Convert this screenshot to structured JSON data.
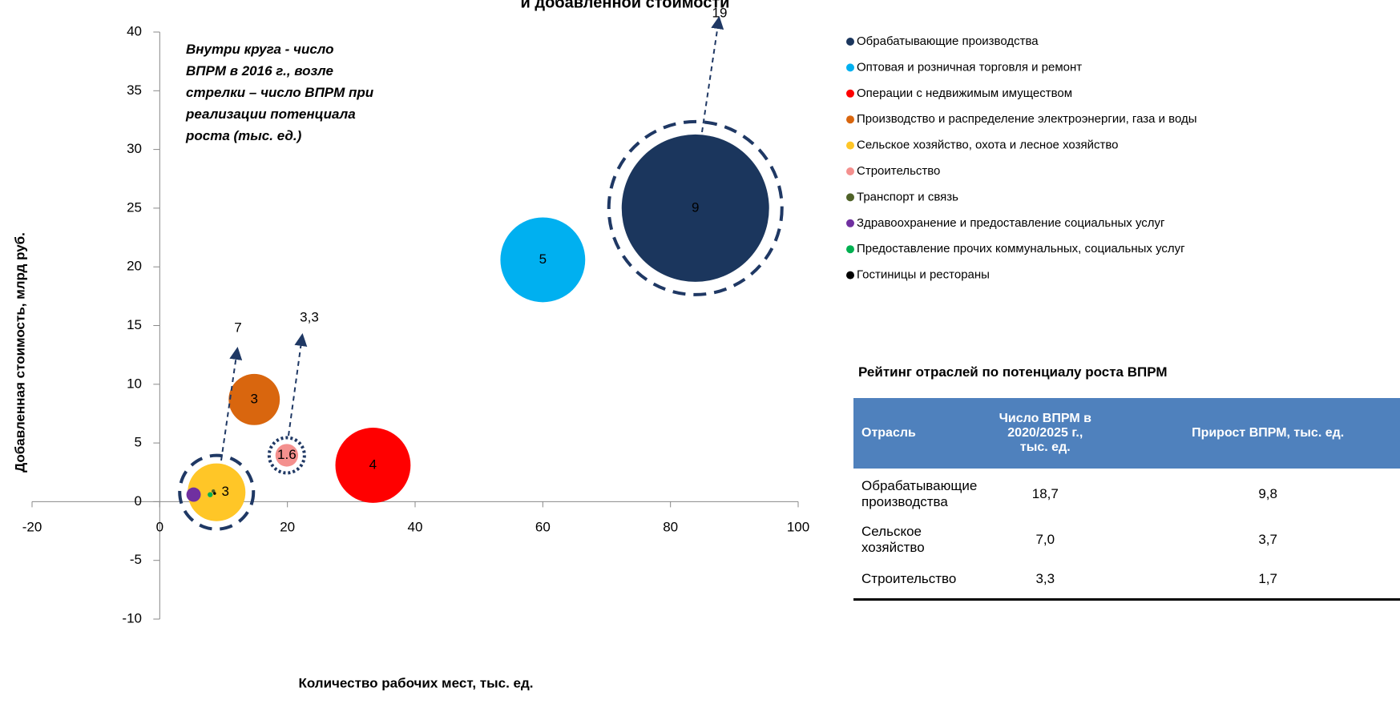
{
  "chart_data": {
    "type": "bubble",
    "title": "и добавленной стоимости",
    "x_label": "Количество рабочих мест, тыс. ед.",
    "y_label": "Добавленная стоимость, млрд руб.",
    "note": "Внутри круга - число ВПРМ в 2016 г., возле стрелки – число ВПРМ при реализации потенциала роста (тыс. ед.)",
    "xlim": [
      -20,
      100
    ],
    "xticks": [
      -20,
      0,
      20,
      40,
      60,
      80,
      100
    ],
    "ylim": [
      -10,
      40
    ],
    "yticks": [
      -10,
      -5,
      0,
      5,
      10,
      15,
      20,
      25,
      30,
      35,
      40
    ],
    "series": [
      {
        "name": "Обрабатывающие производства",
        "color": "#1b365d",
        "x": [
          83.9
        ],
        "values": [
          25.0
        ],
        "sizes": [
          84.6
        ],
        "value_labels": [
          "9"
        ],
        "potential_label": "19"
      },
      {
        "name": "Оптовая и розничная торговля и ремонт",
        "color": "#00b0f0",
        "x": [
          60
        ],
        "values": [
          20.6
        ],
        "sizes": [
          28
        ],
        "value_labels": [
          "5"
        ]
      },
      {
        "name": "Операции с недвижимым имуществом",
        "color": "#ff0000",
        "x": [
          33.4
        ],
        "values": [
          3.1
        ],
        "sizes": [
          22
        ],
        "value_labels": [
          "4"
        ]
      },
      {
        "name": "Производство и распределение электроэнергии, газа и воды",
        "color": "#d9660e",
        "x": [
          14.8
        ],
        "values": [
          8.7
        ],
        "sizes": [
          10.2
        ],
        "value_labels": [
          "3"
        ]
      },
      {
        "name": "Сельское хозяйство, охота и лесное хозяйство",
        "color": "#ffc627",
        "x": [
          8.9
        ],
        "values": [
          0.8
        ],
        "sizes": [
          13
        ],
        "value_labels": [
          "3"
        ],
        "potential_label": "7"
      },
      {
        "name": "Строительство",
        "color": "#f4908e",
        "x": [
          19.9
        ],
        "values": [
          3.95
        ],
        "sizes": [
          2
        ],
        "value_labels": [
          "1.6"
        ],
        "potential_label": "3,3"
      },
      {
        "name": "Транспорт и связь",
        "color": "#4f6228",
        "x": [
          8.4
        ],
        "values": [
          0.9
        ],
        "sizes": [
          0.05
        ]
      },
      {
        "name": "Здравоохранение и предоставление социальных услуг",
        "color": "#7030a0",
        "x": [
          5.3
        ],
        "values": [
          0.6
        ],
        "sizes": [
          0.8
        ]
      },
      {
        "name": "Предоставление прочих коммунальных, социальных услуг",
        "color": "#00b050",
        "x": [
          7.9
        ],
        "values": [
          0.6
        ],
        "sizes": [
          0.1
        ]
      },
      {
        "name": "Гостиницы и рестораны",
        "color": "#000000",
        "x": [
          8.6
        ],
        "values": [
          0.7
        ],
        "sizes": [
          0.03
        ]
      }
    ]
  },
  "table": {
    "title": "Рейтинг отраслей по потенциалу роста ВПРМ",
    "header": [
      "Отрасль",
      "Число ВПРМ в 2020/2025 г., тыс. ед.",
      "Прирост ВПРМ, тыс. ед."
    ],
    "rows": [
      [
        "Обрабатывающие производства",
        "18,7",
        "9,8"
      ],
      [
        "Сельское хозяйство",
        "7,0",
        "3,7"
      ],
      [
        "Строительство",
        "3,3",
        "1,7"
      ]
    ]
  }
}
